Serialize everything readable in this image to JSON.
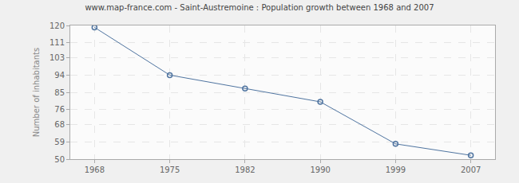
{
  "chart_data": {
    "type": "line",
    "title": "www.map-france.com - Saint-Austremoine : Population growth between 1968 and 2007",
    "y_label": "Number of inhabitants",
    "categories": [
      "1968",
      "1975",
      "1982",
      "1990",
      "1999",
      "2007"
    ],
    "values": [
      119,
      94,
      87,
      80,
      58,
      52
    ],
    "color": "#4f74a0",
    "marker": "open circle",
    "ylim": [
      50,
      120
    ],
    "yticks": [
      50,
      59,
      68,
      76,
      85,
      94,
      103,
      111,
      120
    ],
    "grid": true
  }
}
